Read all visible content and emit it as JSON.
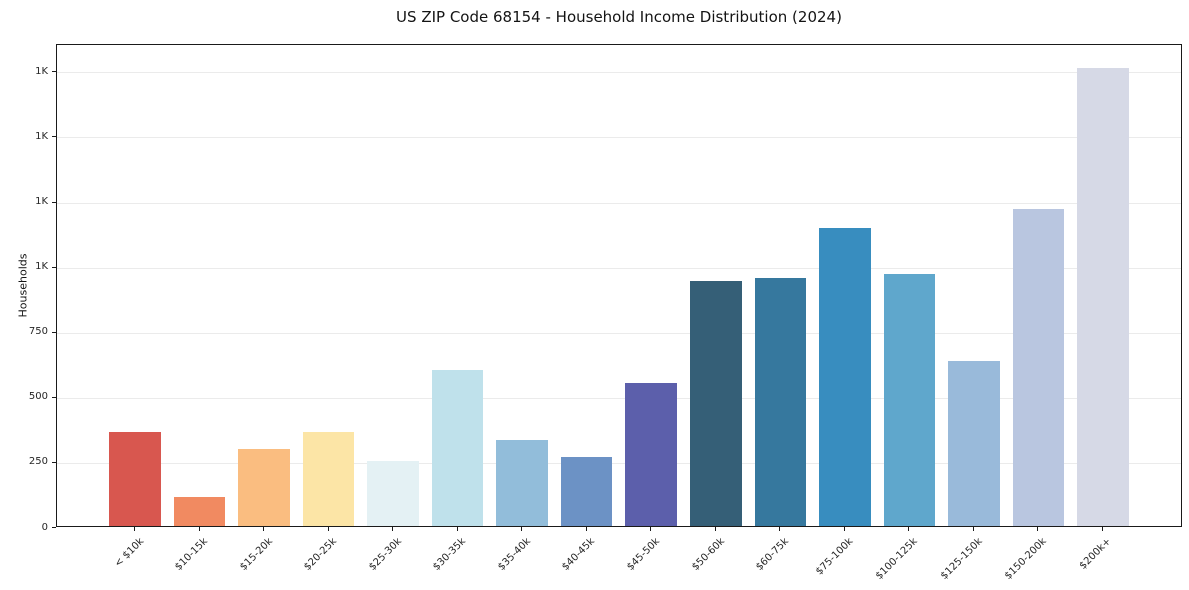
{
  "chart_data": {
    "type": "bar",
    "title": "US ZIP Code 68154 - Household Income Distribution (2024)",
    "xlabel": "",
    "ylabel": "Households",
    "categories": [
      "< $10k",
      "$10-15k",
      "$15-20k",
      "$20-25k",
      "$25-30k",
      "$30-35k",
      "$35-40k",
      "$40-45k",
      "$45-50k",
      "$50-60k",
      "$60-75k",
      "$75-100k",
      "$100-125k",
      "$125-150k",
      "$150-200k",
      "$200k+"
    ],
    "values": [
      363,
      110,
      295,
      363,
      250,
      600,
      330,
      266,
      551,
      940,
      952,
      1144,
      969,
      635,
      1218,
      1761
    ],
    "bar_colors": [
      "#d8574f",
      "#f18a61",
      "#fabd80",
      "#fce5a6",
      "#e4f1f4",
      "#bfe1eb",
      "#92bdda",
      "#6c92c5",
      "#5c5fab",
      "#355f77",
      "#36789e",
      "#388dbf",
      "#5fa7cc",
      "#99bada",
      "#b9c6e0",
      "#d6d9e6"
    ],
    "ylim": [
      0,
      1855
    ],
    "ytick_values": [
      0,
      250,
      500,
      750,
      1000,
      1250,
      1500,
      1750
    ],
    "ytick_labels": [
      "0",
      "250",
      "500",
      "750",
      "1K",
      "1K",
      "1K",
      "1K"
    ],
    "grid": "horizontal-only",
    "legend": "none",
    "background": "#ffffff"
  }
}
